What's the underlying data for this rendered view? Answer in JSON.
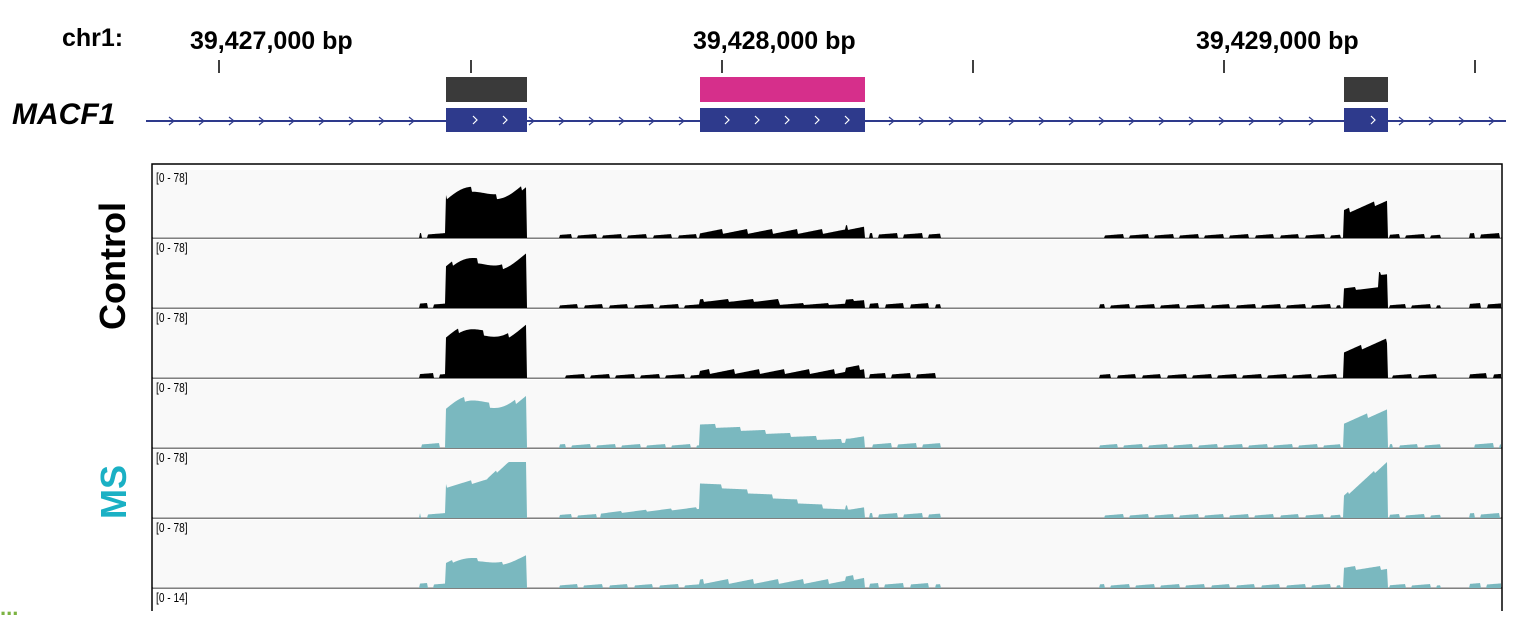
{
  "ruler": {
    "chromosome": "chr1:",
    "ticks": [
      "39,427,000 bp",
      "39,428,000 bp",
      "39,429,000 bp"
    ]
  },
  "gene_track": {
    "name": "MACF1"
  },
  "groups": {
    "control_label": "Control",
    "ms_label": "MS",
    "cut_label": "..."
  },
  "tracks": [
    {
      "range": "[0 - 78]",
      "group": "control"
    },
    {
      "range": "[0 - 78]",
      "group": "control"
    },
    {
      "range": "[0 - 78]",
      "group": "control"
    },
    {
      "range": "[0 - 78]",
      "group": "ms"
    },
    {
      "range": "[0 - 78]",
      "group": "ms"
    },
    {
      "range": "[0 - 78]",
      "group": "ms"
    },
    {
      "range": "[0 - 14]",
      "group": "other"
    }
  ],
  "colors": {
    "control": "#000000",
    "ms": "#7ab8bf",
    "ms_label": "#1ab0c4",
    "gene_body": "#2e3a8c",
    "exon_highlight": "#d62f8b",
    "exon_dark": "#3a3a3a",
    "cut_label": "#7cb342"
  }
}
